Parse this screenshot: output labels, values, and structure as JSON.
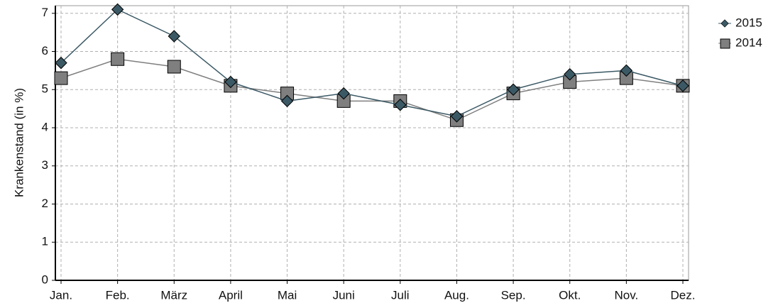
{
  "chart_data": {
    "type": "line",
    "y_label": "Krankenstand (in %)",
    "categories": [
      "Jan.",
      "Feb.",
      "März",
      "April",
      "Mai",
      "Juni",
      "Juli",
      "Aug.",
      "Sep.",
      "Okt.",
      "Nov.",
      "Dez."
    ],
    "series": [
      {
        "name": "2015",
        "color": "#3b5965",
        "marker": "diamond",
        "values": [
          5.7,
          7.1,
          6.4,
          5.2,
          4.7,
          4.9,
          4.6,
          4.3,
          5.0,
          5.4,
          5.5,
          5.1
        ]
      },
      {
        "name": "2014",
        "color": "#7f7f7f",
        "marker": "square",
        "values": [
          5.3,
          5.8,
          5.6,
          5.1,
          4.9,
          4.7,
          4.7,
          4.2,
          4.9,
          5.2,
          5.3,
          5.1
        ]
      }
    ],
    "ylim": [
      0,
      7.2
    ],
    "yticks": [
      0,
      1,
      2,
      3,
      4,
      5,
      6,
      7
    ],
    "grid": true
  }
}
